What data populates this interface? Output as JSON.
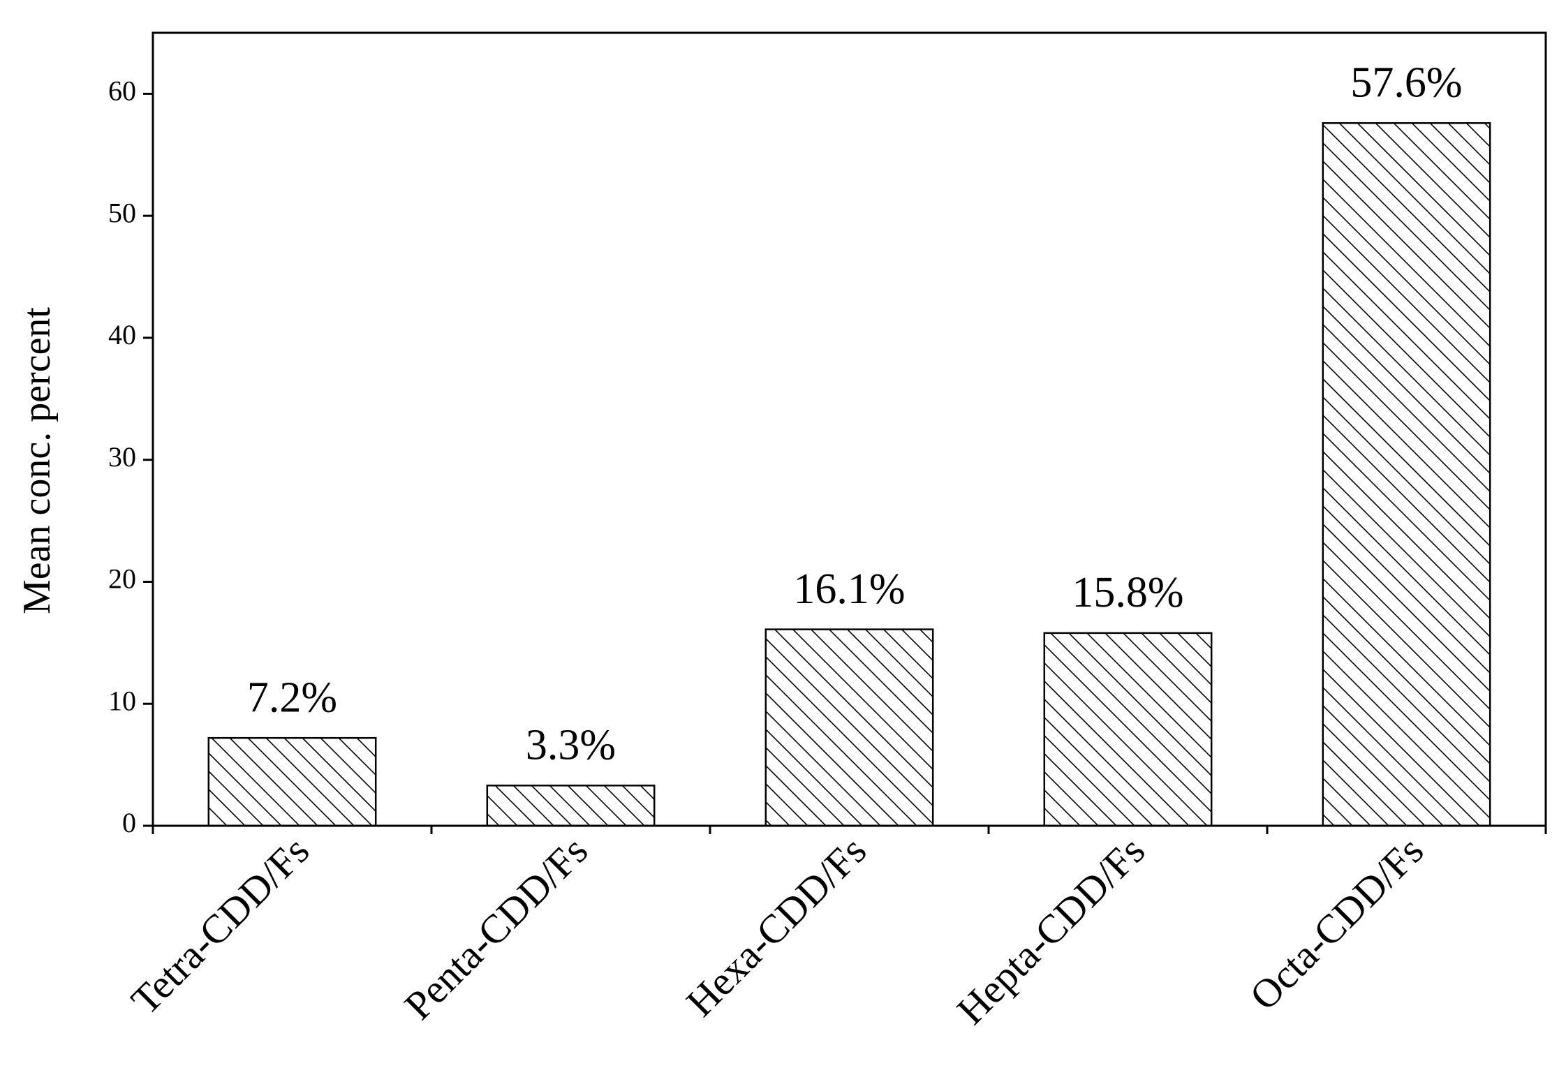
{
  "chart_data": {
    "type": "bar",
    "y_label": "Mean conc. percent",
    "categories": [
      "Tetra-CDD/Fs",
      "Penta-CDD/Fs",
      "Hexa-CDD/Fs",
      "Hepta-CDD/Fs",
      "Octa-CDD/Fs"
    ],
    "values": [
      7.2,
      3.3,
      16.1,
      15.8,
      57.6
    ],
    "value_labels": [
      "7.2%",
      "3.3%",
      "16.1%",
      "15.8%",
      "57.6%"
    ],
    "color": "#000000",
    "ylim": [
      0,
      65
    ],
    "yticks": [
      0,
      10,
      20,
      30,
      40,
      50,
      60
    ],
    "grid": false
  }
}
